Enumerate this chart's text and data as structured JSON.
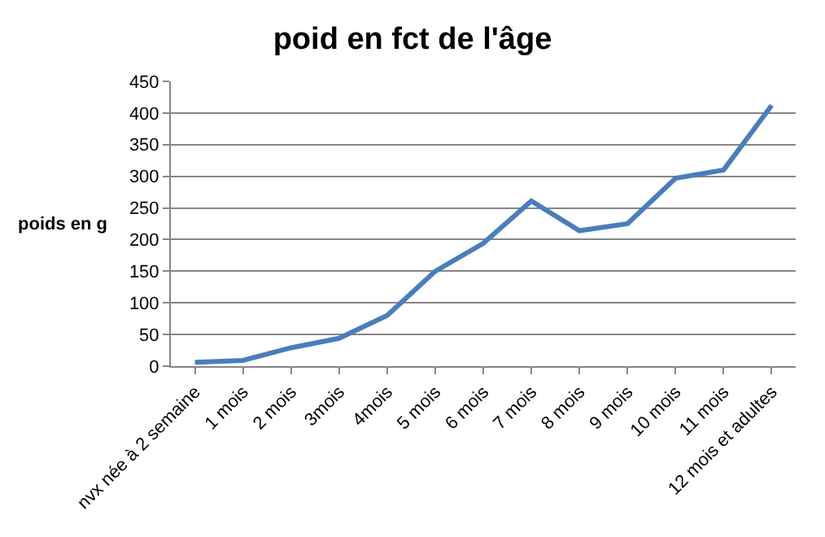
{
  "chart_data": {
    "type": "line",
    "title": "poid en fct de l'âge",
    "ylabel": "poids en g",
    "categories": [
      "nvx née à 2 semaine",
      "1 mois",
      "2 mois",
      "3mois",
      "4mois",
      "5 mois",
      "6 mois",
      "7 mois",
      "8 mois",
      "9 mois",
      "10 mois",
      "11 mois",
      "12 mois et adultes"
    ],
    "series": [
      {
        "color": "#4a7ebb",
        "values": [
          6,
          9,
          29,
          44,
          80,
          150,
          194,
          261,
          214,
          225,
          297,
          310,
          412
        ]
      }
    ],
    "ylim": [
      0,
      450
    ],
    "yticks": [
      0,
      50,
      100,
      150,
      200,
      250,
      300,
      350,
      400,
      450
    ],
    "grid": "y",
    "marker": "none",
    "line_style": "solid"
  }
}
